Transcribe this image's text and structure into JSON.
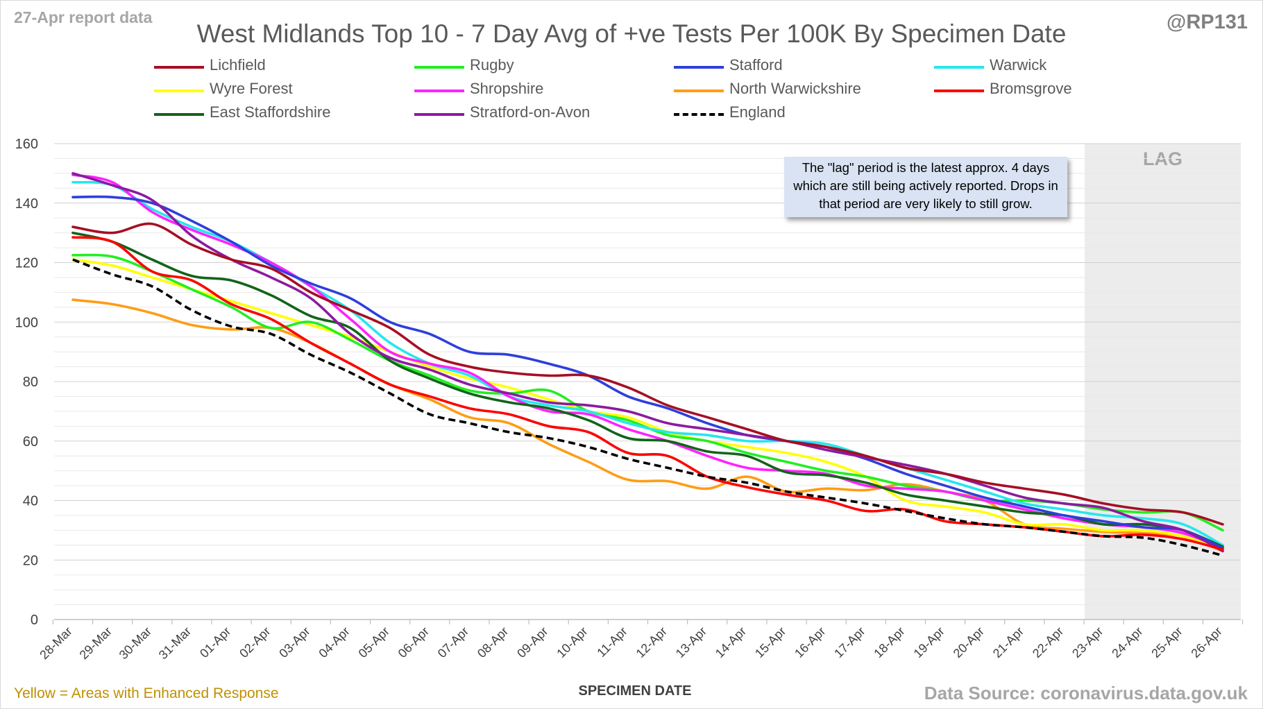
{
  "header": {
    "report_date": "27-Apr report data",
    "handle": "@RP131",
    "title": "West Midlands Top 10 - 7 Day Avg of +ve Tests Per 100K By Specimen Date"
  },
  "note": "The \"lag\" period is the latest approx. 4 days which are still being actively reported.  Drops in that period are very likely to still grow.",
  "footer": {
    "footnote": "Yellow = Areas with Enhanced Response",
    "source": "Data Source: coronavirus.data.gov.uk"
  },
  "colors": {
    "Lichfield": "#a50f24",
    "Rugby": "#22ee22",
    "Stafford": "#2e3fdc",
    "Warwick": "#26e6ee",
    "Wyre Forest": "#ffff00",
    "Shropshire": "#ff22ff",
    "North Warwickshire": "#ff9c14",
    "Bromsgrove": "#ff0000",
    "East Staffordshire": "#12641a",
    "Stratford-on-Avon": "#8c1aa0",
    "England": "#000000"
  },
  "chart_data": {
    "type": "line",
    "title": "West Midlands Top 10 - 7 Day Avg of +ve Tests Per 100K By Specimen Date",
    "xlabel": "SPECIMEN DATE",
    "ylabel": "",
    "ylim": [
      0,
      160
    ],
    "yticks": [
      0,
      20,
      40,
      60,
      80,
      100,
      120,
      140,
      160
    ],
    "grid": true,
    "legend_position": "top",
    "shaded_region": {
      "label": "LAG",
      "from": "23-Apr",
      "to": "26-Apr"
    },
    "categories": [
      "28-Mar",
      "29-Mar",
      "30-Mar",
      "31-Mar",
      "01-Apr",
      "02-Apr",
      "03-Apr",
      "04-Apr",
      "05-Apr",
      "06-Apr",
      "07-Apr",
      "08-Apr",
      "09-Apr",
      "10-Apr",
      "11-Apr",
      "12-Apr",
      "13-Apr",
      "14-Apr",
      "15-Apr",
      "16-Apr",
      "17-Apr",
      "18-Apr",
      "19-Apr",
      "20-Apr",
      "21-Apr",
      "22-Apr",
      "23-Apr",
      "24-Apr",
      "25-Apr",
      "26-Apr"
    ],
    "series": [
      {
        "name": "Lichfield",
        "values": [
          132,
          130,
          133,
          126,
          121,
          118,
          110,
          104,
          98,
          89,
          85,
          83,
          82,
          82,
          78,
          72,
          68,
          64,
          60,
          58,
          55,
          51,
          49,
          46,
          44,
          42,
          39,
          37,
          36,
          32
        ]
      },
      {
        "name": "Rugby",
        "values": [
          122.5,
          122,
          117,
          111,
          105,
          98,
          100,
          94,
          87,
          82,
          77,
          76,
          77,
          70,
          67,
          62,
          60,
          56,
          53,
          50,
          48,
          45,
          43,
          40,
          40,
          39,
          37,
          36,
          36,
          30
        ]
      },
      {
        "name": "Stafford",
        "values": [
          142,
          142,
          140,
          134,
          127,
          119,
          113,
          108,
          100,
          96,
          90,
          89,
          86,
          82,
          75,
          71,
          66,
          62,
          60,
          58,
          54,
          49,
          45,
          41,
          38,
          35,
          33,
          31,
          30,
          24
        ]
      },
      {
        "name": "Warwick",
        "values": [
          147,
          146,
          138,
          132,
          127,
          120,
          112,
          104,
          93,
          86,
          82,
          75,
          72,
          70,
          66,
          63,
          62,
          60,
          60,
          59,
          55,
          51,
          47,
          43,
          39,
          37,
          35,
          34,
          32,
          25
        ]
      },
      {
        "name": "Wyre Forest",
        "values": [
          121,
          119,
          115,
          111,
          107,
          103,
          99,
          95,
          90,
          85,
          81,
          78,
          74,
          70,
          68,
          63,
          60,
          58,
          56,
          53,
          48,
          40,
          38,
          36,
          32,
          32,
          30,
          30,
          28,
          24
        ]
      },
      {
        "name": "Shropshire",
        "values": [
          149.5,
          147,
          137,
          131,
          126,
          120,
          112,
          101,
          90,
          86,
          83,
          75,
          70,
          69,
          64,
          60,
          55,
          51,
          50,
          49,
          45,
          44,
          43,
          40,
          37,
          34,
          32,
          31,
          29,
          24
        ]
      },
      {
        "name": "North Warwickshire",
        "values": [
          107.5,
          106,
          103,
          99,
          97.5,
          98,
          93,
          86,
          79,
          74,
          68,
          66,
          59,
          53,
          47,
          46.5,
          44,
          48,
          43,
          44,
          43.5,
          45.5,
          43,
          40,
          32,
          30.5,
          29.5,
          29,
          28,
          23
        ]
      },
      {
        "name": "Bromsgrove",
        "values": [
          128.5,
          127,
          117,
          114,
          106,
          101,
          93,
          86,
          79,
          75,
          71,
          69,
          65,
          63,
          56,
          55,
          48,
          44.5,
          42,
          40,
          36.5,
          37,
          33,
          32,
          31,
          29.5,
          28,
          28.5,
          27,
          23.5
        ]
      },
      {
        "name": "East Staffordshire",
        "values": [
          130,
          127,
          121,
          115.5,
          114,
          109,
          102,
          98,
          87,
          81,
          76,
          73,
          71,
          67,
          61,
          60,
          56.5,
          55,
          49.5,
          48.5,
          46,
          42,
          40,
          38,
          36,
          35,
          32,
          32,
          30,
          24.5
        ]
      },
      {
        "name": "Stratford-on-Avon",
        "values": [
          150,
          146,
          141,
          129,
          121,
          115,
          108,
          96,
          88,
          84,
          79,
          76,
          73,
          72,
          70,
          66,
          64,
          62,
          60,
          57,
          54.5,
          52,
          49,
          45,
          41,
          39,
          37.5,
          33,
          30,
          23
        ]
      },
      {
        "name": "England",
        "values": [
          121,
          116,
          112,
          104,
          98.5,
          96,
          89,
          83,
          76,
          69,
          66,
          63,
          61,
          58,
          54,
          51,
          48,
          46,
          43,
          41,
          39,
          36.5,
          34,
          32,
          31,
          29.5,
          28,
          27.5,
          25,
          21.5
        ]
      }
    ]
  }
}
